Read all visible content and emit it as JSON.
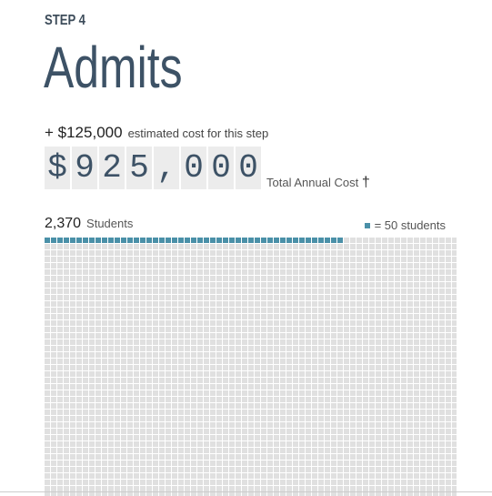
{
  "step": {
    "label": "STEP 4",
    "title": "Admits"
  },
  "cost": {
    "added": "+ $125,000",
    "added_label": "estimated cost for this step",
    "total_digits": [
      "$",
      "9",
      "2",
      "5",
      ",",
      "0",
      "0",
      "0"
    ],
    "total_label": "Total Annual Cost",
    "dagger": "†"
  },
  "students": {
    "count": "2,370",
    "label": "Students",
    "legend_text": "= 50 students",
    "filled_units": 47,
    "colors": {
      "filled": "#4a90a8",
      "empty": "#e0e0e0"
    }
  }
}
